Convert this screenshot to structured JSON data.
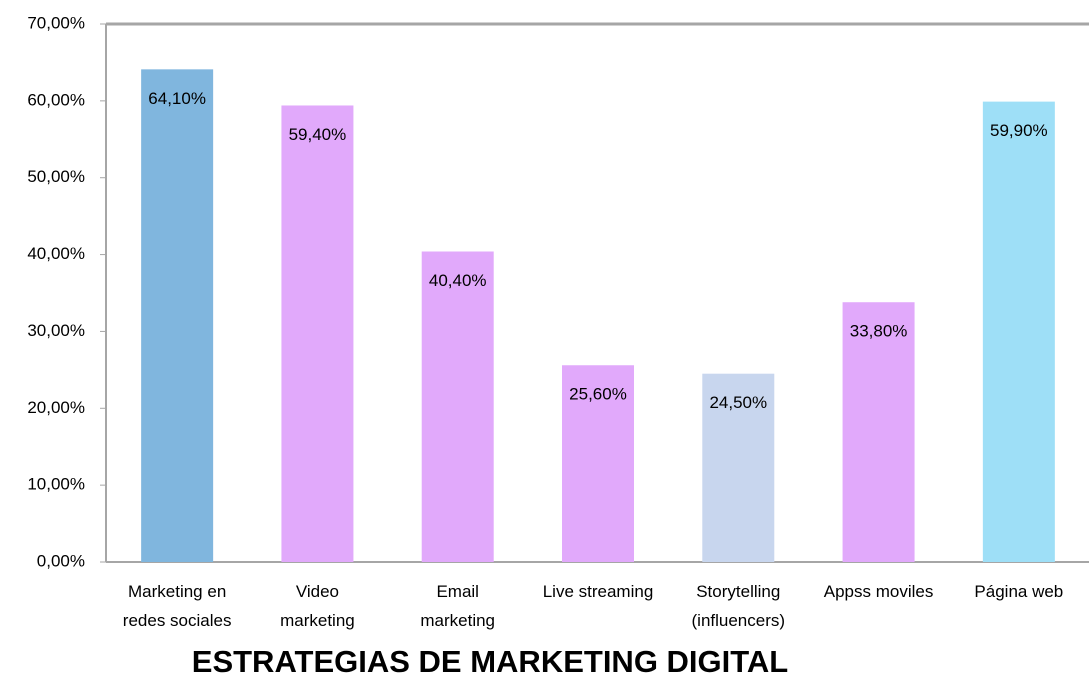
{
  "chart_data": {
    "type": "bar",
    "title": "ESTRATEGIAS DE MARKETING DIGITAL",
    "categories": [
      "Marketing en\nredes sociales",
      "Video\nmarketing",
      "Email\nmarketing",
      "Live streaming",
      "Storytelling\n(influencers)",
      "Appss moviles",
      "Página web"
    ],
    "values": [
      64.1,
      59.4,
      40.4,
      25.6,
      24.5,
      33.8,
      59.9
    ],
    "value_labels": [
      "64,10%",
      "59,40%",
      "40,40%",
      "25,60%",
      "24,50%",
      "33,80%",
      "59,90%"
    ],
    "colors": [
      "#80b6de",
      "#e1a9fb",
      "#e1a9fb",
      "#e1a9fb",
      "#c8d6ee",
      "#e1a9fb",
      "#9edff7"
    ],
    "ylim": [
      0,
      70
    ],
    "yticks": [
      {
        "value": 0,
        "label": "0,00%"
      },
      {
        "value": 10,
        "label": "10,00%"
      },
      {
        "value": 20,
        "label": "20,00%"
      },
      {
        "value": 30,
        "label": "30,00%"
      },
      {
        "value": 40,
        "label": "40,00%"
      },
      {
        "value": 50,
        "label": "50,00%"
      },
      {
        "value": 60,
        "label": "60,00%"
      },
      {
        "value": 70,
        "label": "70,00%"
      }
    ],
    "grid": false
  }
}
